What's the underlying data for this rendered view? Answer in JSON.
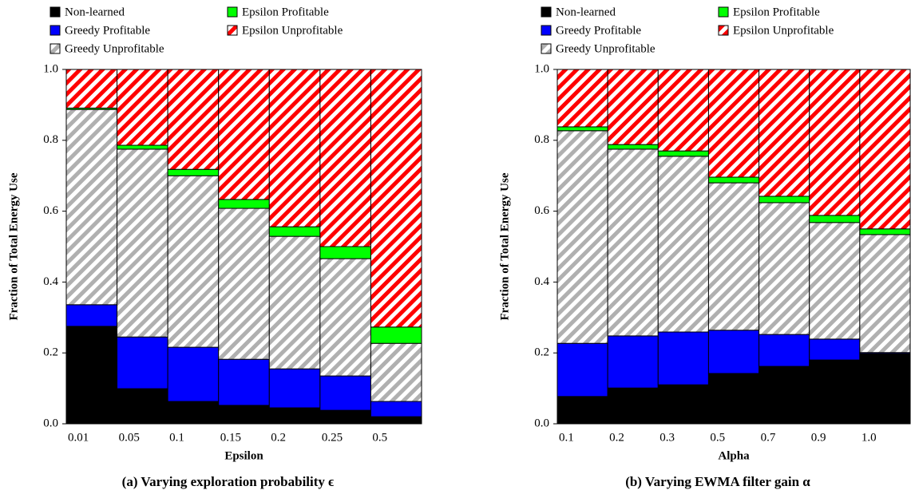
{
  "chart_data": [
    {
      "type": "bar",
      "stacked": true,
      "caption": "(a) Varying exploration probability ϵ",
      "xlabel": "Epsilon",
      "ylabel": "Fraction of Total Energy Use",
      "categories": [
        "0.01",
        "0.05",
        "0.1",
        "0.15",
        "0.2",
        "0.25",
        "0.5"
      ],
      "ylim": [
        0,
        1
      ],
      "yticks": [
        {
          "value": 0,
          "label": "0.0"
        },
        0.2,
        0.4,
        0.6,
        0.8,
        {
          "value": 1,
          "label": "1.0"
        }
      ],
      "series": [
        {
          "name": "Non-learned",
          "color": "#000000",
          "values": [
            0.275,
            0.099,
            0.063,
            0.052,
            0.045,
            0.038,
            0.02
          ]
        },
        {
          "name": "Greedy Profitable",
          "color": "#0000ff",
          "values": [
            0.061,
            0.146,
            0.153,
            0.13,
            0.11,
            0.097,
            0.043
          ]
        },
        {
          "name": "Greedy Unprofitable",
          "color": "#b0b0b0",
          "hatch": true,
          "values": [
            0.551,
            0.53,
            0.484,
            0.426,
            0.374,
            0.331,
            0.164
          ]
        },
        {
          "name": "Epsilon Profitable",
          "color": "#00ff00",
          "values": [
            0.004,
            0.011,
            0.018,
            0.025,
            0.027,
            0.034,
            0.046
          ]
        },
        {
          "name": "Epsilon Unprofitable",
          "color": "#ff0000",
          "hatch": true,
          "values": [
            0.109,
            0.214,
            0.282,
            0.367,
            0.444,
            0.5,
            0.727
          ]
        }
      ]
    },
    {
      "type": "bar",
      "stacked": true,
      "caption": "(b) Varying EWMA filter gain α",
      "xlabel": "Alpha",
      "ylabel": "Fraction of Total Energy Use",
      "categories": [
        "0.1",
        "0.2",
        "0.3",
        "0.5",
        "0.7",
        "0.9",
        "1.0"
      ],
      "ylim": [
        0,
        1
      ],
      "yticks": [
        {
          "value": 0,
          "label": "0.0"
        },
        0.2,
        0.4,
        0.6,
        0.8,
        {
          "value": 1,
          "label": "1.0"
        }
      ],
      "series": [
        {
          "name": "Non-learned",
          "color": "#000000",
          "values": [
            0.077,
            0.101,
            0.11,
            0.142,
            0.162,
            0.18,
            0.198
          ]
        },
        {
          "name": "Greedy Profitable",
          "color": "#0000ff",
          "values": [
            0.15,
            0.147,
            0.149,
            0.122,
            0.09,
            0.059,
            0.003
          ]
        },
        {
          "name": "Greedy Unprofitable",
          "color": "#b0b0b0",
          "hatch": true,
          "values": [
            0.6,
            0.527,
            0.496,
            0.416,
            0.372,
            0.329,
            0.333
          ]
        },
        {
          "name": "Epsilon Profitable",
          "color": "#00ff00",
          "values": [
            0.011,
            0.013,
            0.015,
            0.016,
            0.018,
            0.02,
            0.016
          ]
        },
        {
          "name": "Epsilon Unprofitable",
          "color": "#ff0000",
          "hatch": true,
          "values": [
            0.162,
            0.212,
            0.23,
            0.304,
            0.358,
            0.412,
            0.45
          ]
        }
      ]
    }
  ]
}
